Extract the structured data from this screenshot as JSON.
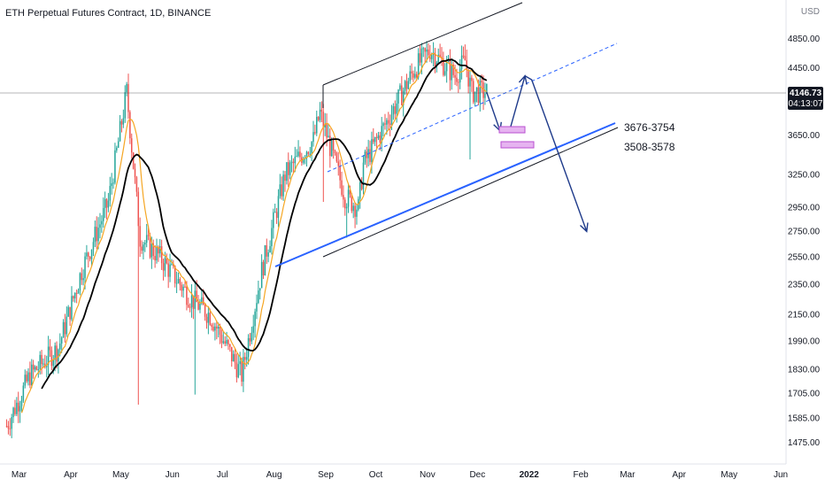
{
  "header": {
    "title": "ETH Perpetual Futures Contract, 1D, BINANCE"
  },
  "price_axis": {
    "currency": "USD",
    "price_label": "4146.73",
    "countdown": "04:13:07",
    "label_color": "#131722"
  },
  "colors": {
    "up": "#26a69a",
    "down": "#ef5350",
    "ema_fast": "#f5a623",
    "ma_slow": "#000000",
    "channel_blue": "#2962ff",
    "arrow_blue": "#1e3a8a",
    "zone_fill": "#e6b3f0",
    "zone_stroke": "#b84fd1"
  },
  "annotations": {
    "zone_upper": "3676-3754",
    "zone_lower": "3508-3578"
  },
  "chart_data": {
    "type": "candlestick",
    "title": "ETH Perpetual Futures Contract, 1D, BINANCE",
    "x_ticks": [
      "Mar",
      "Apr",
      "May",
      "Jun",
      "Jul",
      "Aug",
      "Sep",
      "Oct",
      "Nov",
      "Dec",
      "2022",
      "Feb",
      "Mar",
      "Apr",
      "May",
      "Jun"
    ],
    "y_ticks": [
      4850,
      4450,
      4146.73,
      3650,
      3250,
      2950,
      2750,
      2550,
      2350,
      2150,
      1990,
      1830,
      1705,
      1585,
      1475
    ],
    "y_range": [
      1400,
      5200
    ],
    "last_price": 4146.73,
    "price_path": [
      {
        "date": "2021-03-01",
        "close": 1550
      },
      {
        "date": "2021-03-15",
        "close": 1800
      },
      {
        "date": "2021-04-01",
        "close": 1950
      },
      {
        "date": "2021-04-15",
        "close": 2450
      },
      {
        "date": "2021-05-01",
        "close": 3000
      },
      {
        "date": "2021-05-12",
        "close": 4150
      },
      {
        "date": "2021-05-20",
        "close": 2700
      },
      {
        "date": "2021-06-01",
        "close": 2550
      },
      {
        "date": "2021-06-20",
        "close": 2250
      },
      {
        "date": "2021-07-01",
        "close": 2150
      },
      {
        "date": "2021-07-20",
        "close": 1800
      },
      {
        "date": "2021-08-01",
        "close": 2450
      },
      {
        "date": "2021-08-15",
        "close": 3250
      },
      {
        "date": "2021-09-01",
        "close": 3600
      },
      {
        "date": "2021-09-05",
        "close": 3900
      },
      {
        "date": "2021-09-20",
        "close": 3050
      },
      {
        "date": "2021-09-28",
        "close": 2950
      },
      {
        "date": "2021-10-01",
        "close": 3350
      },
      {
        "date": "2021-10-15",
        "close": 3800
      },
      {
        "date": "2021-11-01",
        "close": 4450
      },
      {
        "date": "2021-11-10",
        "close": 4700
      },
      {
        "date": "2021-11-25",
        "close": 4350
      },
      {
        "date": "2021-12-01",
        "close": 4550
      },
      {
        "date": "2021-12-05",
        "close": 4150
      },
      {
        "date": "2021-12-14",
        "close": 4146.73
      }
    ],
    "zones": [
      {
        "label": "3676-3754",
        "low": 3676,
        "high": 3754
      },
      {
        "label": "3508-3578",
        "low": 3508,
        "high": 3578
      }
    ],
    "projection": [
      {
        "date": "2021-12-14",
        "price": 4146
      },
      {
        "date": "2021-12-22",
        "price": 3700
      },
      {
        "date": "2021-12-28",
        "price": 3720
      },
      {
        "date": "2022-01-06",
        "price": 4350
      },
      {
        "date": "2022-01-10",
        "price": 4300
      },
      {
        "date": "2022-02-12",
        "price": 2750
      }
    ],
    "grid": false,
    "legend": "none"
  }
}
